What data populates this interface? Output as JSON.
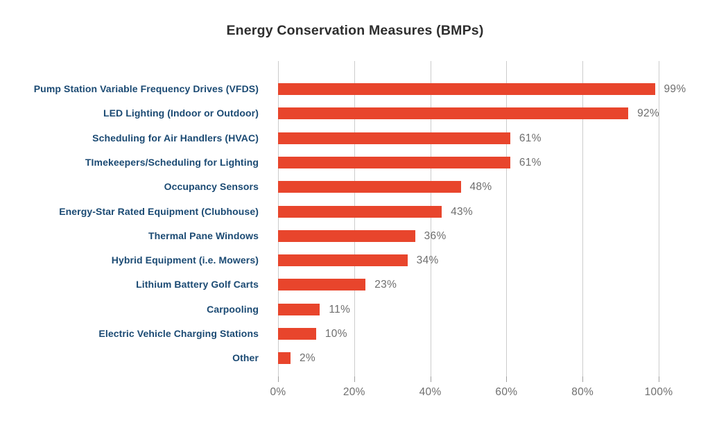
{
  "chart_data": {
    "type": "bar",
    "orientation": "horizontal",
    "title": "Energy Conservation Measures (BMPs)",
    "categories": [
      "Pump Station Variable Frequency Drives (VFDS)",
      "LED Lighting (Indoor or Outdoor)",
      "Scheduling for Air Handlers (HVAC)",
      "TImekeepers/Scheduling for Lighting",
      "Occupancy Sensors",
      "Energy-Star Rated Equipment (Clubhouse)",
      "Thermal Pane Windows",
      "Hybrid Equipment (i.e. Mowers)",
      "Lithium Battery Golf Carts",
      "Carpooling",
      "Electric Vehicle Charging Stations",
      "Other"
    ],
    "values": [
      99,
      92,
      61,
      61,
      48,
      43,
      36,
      34,
      23,
      11,
      10,
      2
    ],
    "value_labels": [
      "99%",
      "92%",
      "61%",
      "61%",
      "48%",
      "43%",
      "36%",
      "34%",
      "23%",
      "11%",
      "10%",
      "2%"
    ],
    "x_tick_values": [
      0,
      20,
      40,
      60,
      80,
      100
    ],
    "x_tick_labels": [
      "0%",
      "20%",
      "40%",
      "60%",
      "80%",
      "100%"
    ],
    "xlim": [
      0,
      100
    ],
    "grid": true,
    "legend": "none",
    "colors": {
      "bar": "#E8452C",
      "category_label": "#1B4A73",
      "title": "#2E2E2E",
      "value_label": "#6E6E6E",
      "axis_label": "#6F6F6F",
      "gridline": "#CCCCCC",
      "tick": "#9F9F9F",
      "background": "#FFFFFF"
    }
  }
}
